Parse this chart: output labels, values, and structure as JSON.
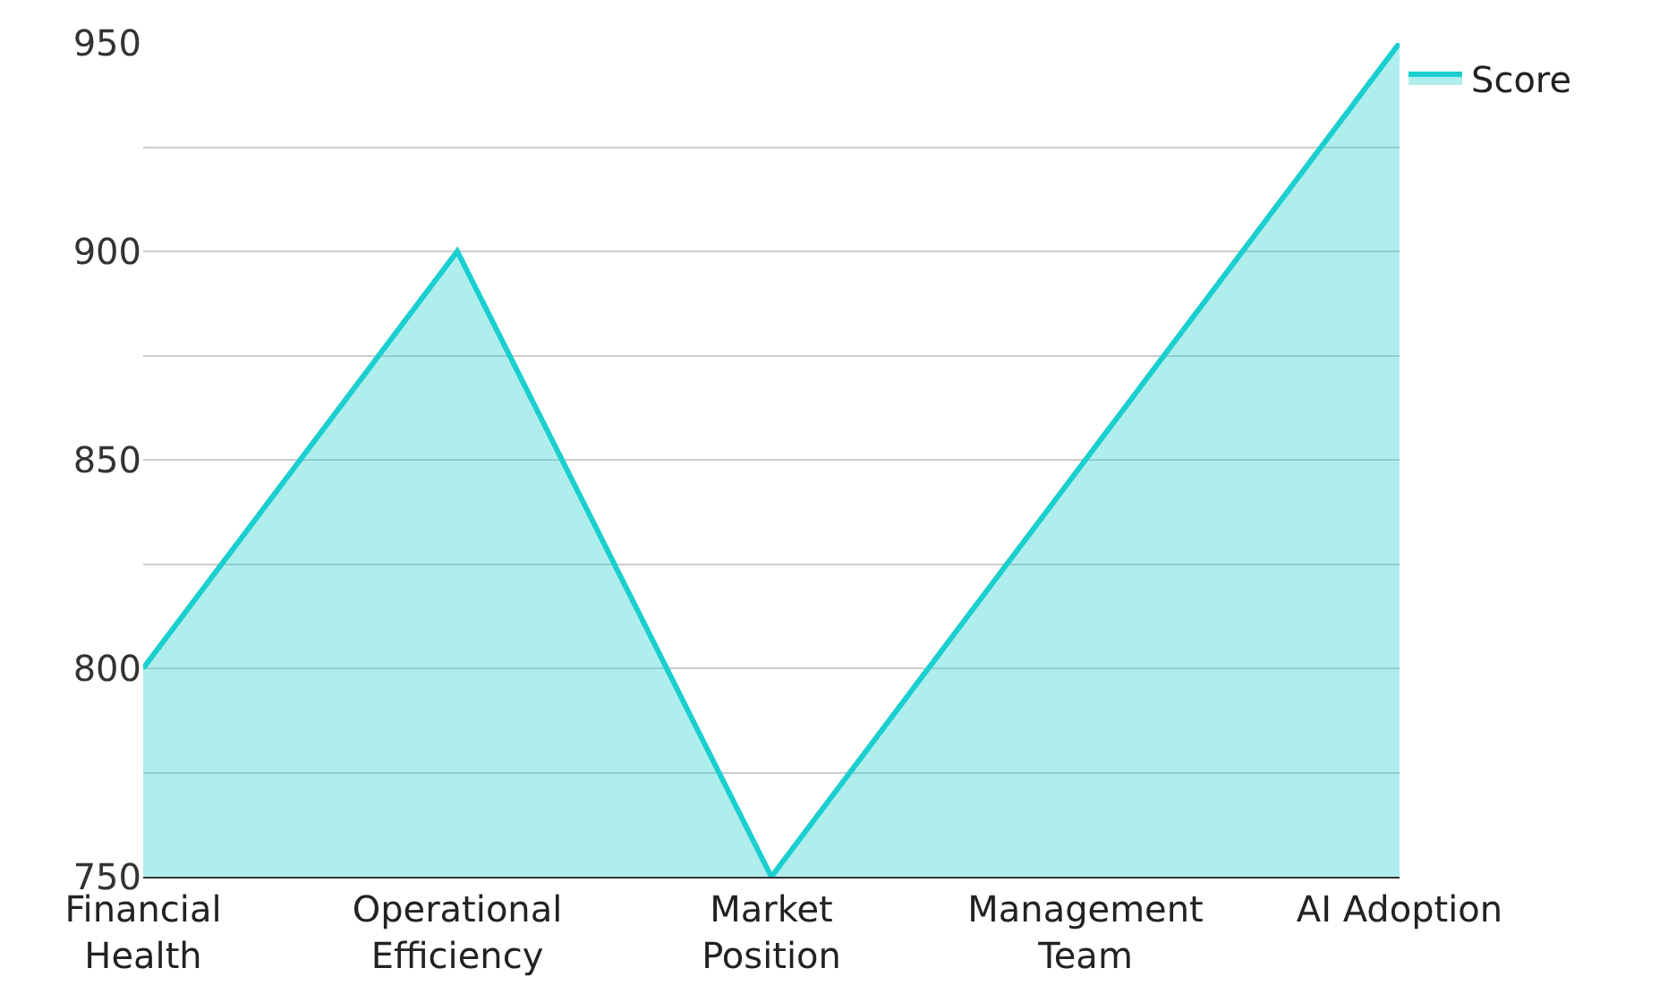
{
  "chart_data": {
    "type": "area",
    "categories": [
      "Financial\nHealth",
      "Operational\nEfficiency",
      "Market\nPosition",
      "Management\nTeam",
      "AI Adoption"
    ],
    "series": [
      {
        "name": "Score",
        "color": "#1ccfcf",
        "values": [
          800,
          900,
          750,
          850,
          950
        ]
      }
    ],
    "ylim": [
      750,
      950
    ],
    "yticks": [
      750,
      {
        "value": 775,
        "label": null
      },
      800,
      {
        "value": 825,
        "label": null
      },
      850,
      {
        "value": 875,
        "label": null
      },
      900,
      {
        "value": 925,
        "label": null
      },
      950
    ],
    "grid": "y",
    "legend": "top right",
    "marker": "none",
    "line_style": "solid"
  }
}
